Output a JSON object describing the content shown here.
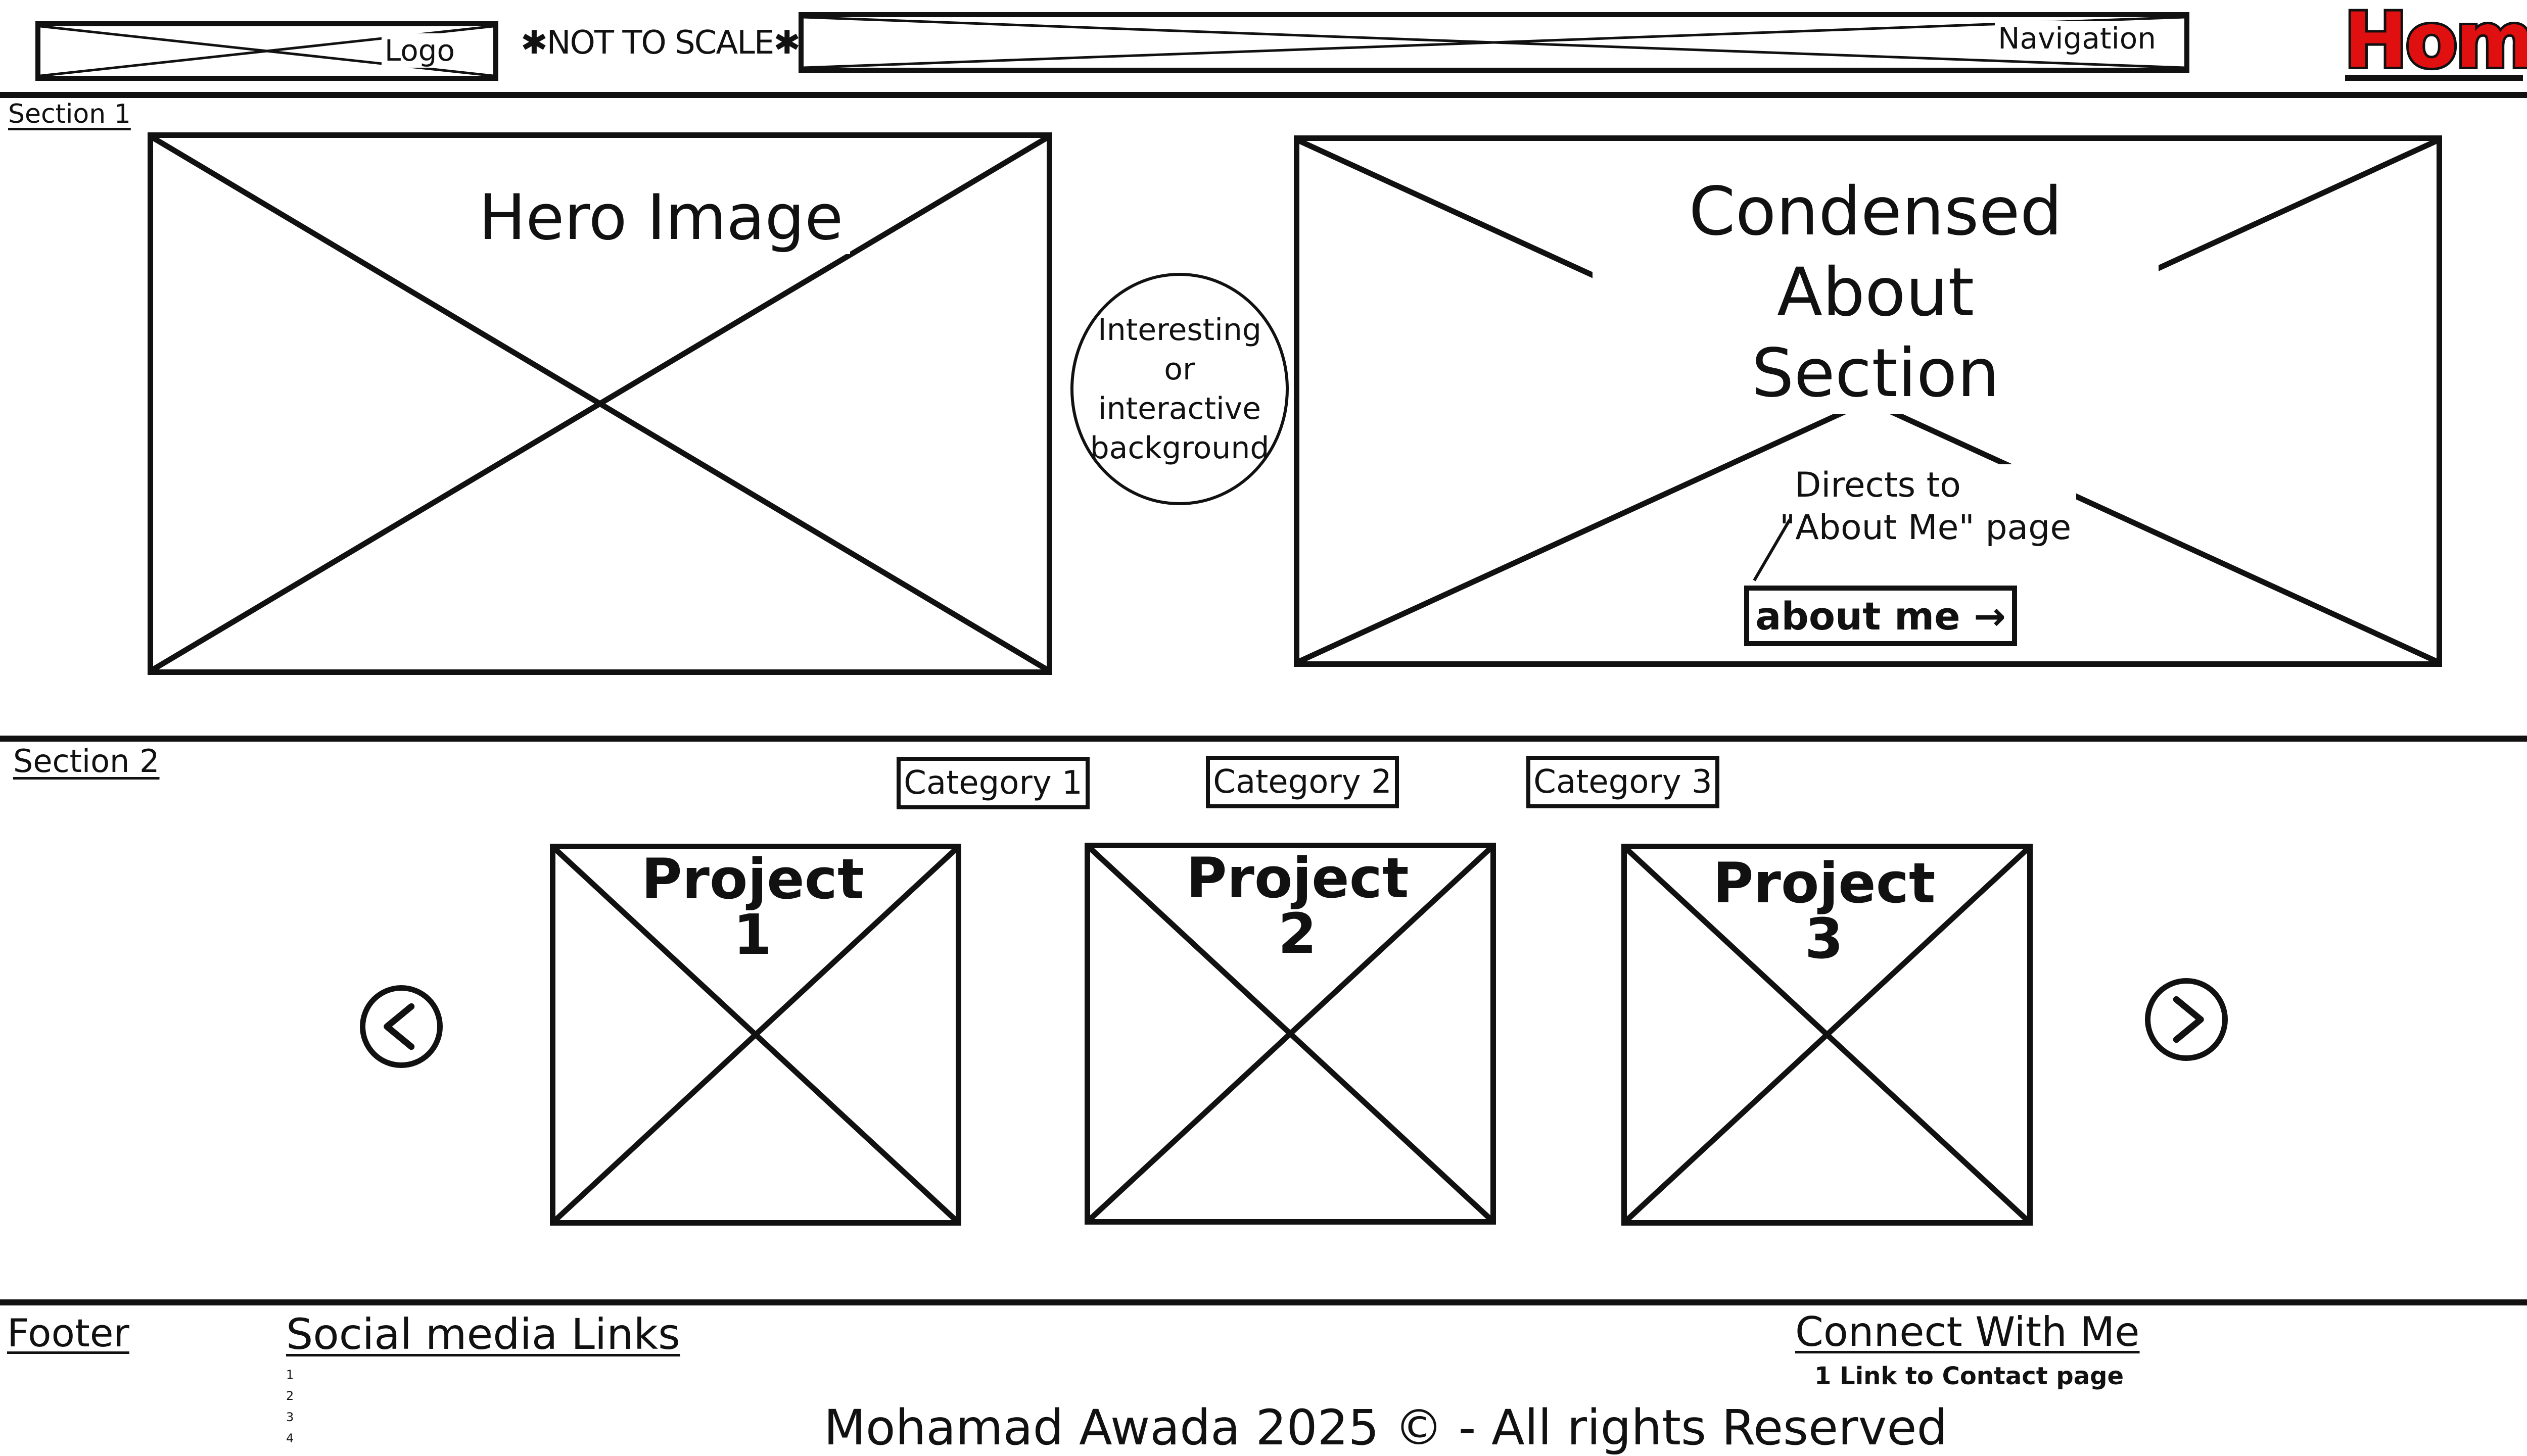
{
  "header": {
    "logo_label": "Logo",
    "not_to_scale": "✱NOT TO SCALE✱",
    "navigation_label": "Navigation",
    "home_label": "Home"
  },
  "colors": {
    "accent": "#e01010",
    "ink": "#111111"
  },
  "section1": {
    "label": "Section 1",
    "hero_label": "Hero Image",
    "background_note": "Interesting or interactive background",
    "about_title_line1": "Condensed About",
    "about_title_line2": "Section",
    "directs_note_line1": "Directs to",
    "directs_note_line2": "\"About Me\" page",
    "about_button_label": "about me →"
  },
  "section2": {
    "label": "Section 2",
    "categories": [
      "Category 1",
      "Category 2",
      "Category 3"
    ],
    "projects": [
      {
        "title": "Project",
        "number": "1"
      },
      {
        "title": "Project",
        "number": "2"
      },
      {
        "title": "Project",
        "number": "3"
      }
    ],
    "prev_icon": "chevron-left-icon",
    "next_icon": "chevron-right-icon"
  },
  "footer": {
    "label": "Footer",
    "social_title": "Social media Links",
    "social_items": [
      "1",
      "2",
      "3",
      "4"
    ],
    "connect_title": "Connect With Me",
    "connect_item": "1 Link to Contact page",
    "copyright": "Mohamad Awada 2025 © - All rights Reserved"
  }
}
